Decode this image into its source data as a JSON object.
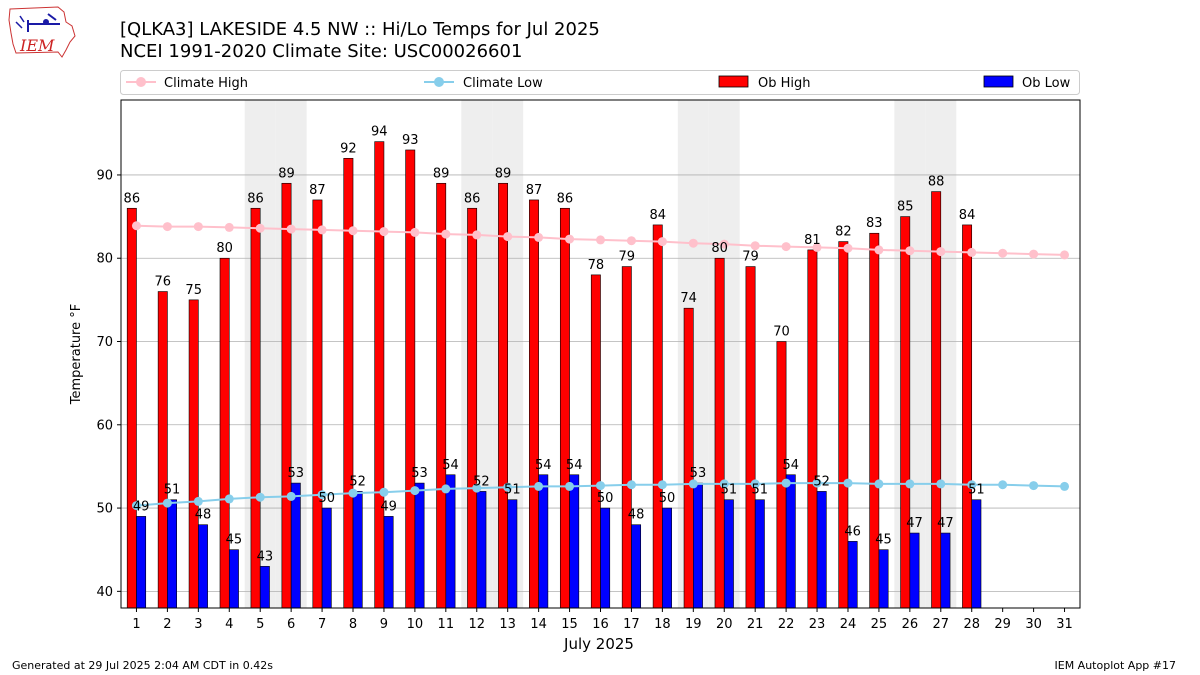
{
  "footer": {
    "generated": "Generated at 29 Jul 2025 2:04 AM CDT in 0.42s",
    "app": "IEM Autoplot App #17"
  },
  "logo": {
    "text": "IEM",
    "icon": "iem-iowa-state-logo"
  },
  "colors": {
    "ob_high": "#ff0000",
    "ob_low": "#0000ff",
    "climate_high": "#ffc0cb",
    "climate_low": "#87ceeb",
    "weekend_band": "#eeeeee",
    "grid": "#b0b0b0"
  },
  "chart_data": {
    "type": "bar",
    "title": "[QLKA3] LAKESIDE 4.5 NW :: Hi/Lo Temps for Jul 2025",
    "subtitle": "NCEI 1991-2020 Climate Site: USC00026601",
    "xlabel": "July 2025",
    "ylabel": "Temperature °F",
    "ylim": [
      38,
      99
    ],
    "yticks": [
      40,
      50,
      60,
      70,
      80,
      90
    ],
    "grid": "horizontal",
    "legend_position": "top",
    "categories": [
      "1",
      "2",
      "3",
      "4",
      "5",
      "6",
      "7",
      "8",
      "9",
      "10",
      "11",
      "12",
      "13",
      "14",
      "15",
      "16",
      "17",
      "18",
      "19",
      "20",
      "21",
      "22",
      "23",
      "24",
      "25",
      "26",
      "27",
      "28",
      "29",
      "30",
      "31"
    ],
    "shaded_days": [
      5,
      6,
      12,
      13,
      19,
      20,
      26,
      27
    ],
    "series": [
      {
        "name": "Ob High",
        "kind": "bar",
        "values": [
          86,
          76,
          75,
          80,
          86,
          89,
          87,
          92,
          94,
          93,
          89,
          86,
          89,
          87,
          86,
          78,
          79,
          84,
          74,
          80,
          79,
          70,
          81,
          82,
          83,
          85,
          88,
          84,
          null,
          null,
          null
        ]
      },
      {
        "name": "Ob Low",
        "kind": "bar",
        "values": [
          49,
          51,
          48,
          45,
          43,
          53,
          50,
          52,
          49,
          53,
          54,
          52,
          51,
          54,
          54,
          50,
          48,
          50,
          53,
          51,
          51,
          54,
          52,
          46,
          45,
          47,
          47,
          51,
          null,
          null,
          null
        ]
      },
      {
        "name": "Climate High",
        "kind": "line",
        "values": [
          83.9,
          83.8,
          83.8,
          83.7,
          83.6,
          83.5,
          83.4,
          83.3,
          83.2,
          83.1,
          82.9,
          82.8,
          82.6,
          82.5,
          82.3,
          82.2,
          82.1,
          82.0,
          81.8,
          81.7,
          81.5,
          81.4,
          81.3,
          81.2,
          81.0,
          80.9,
          80.8,
          80.7,
          80.6,
          80.5,
          80.4
        ]
      },
      {
        "name": "Climate Low",
        "kind": "line",
        "values": [
          50.3,
          50.6,
          50.8,
          51.1,
          51.3,
          51.4,
          51.6,
          51.8,
          51.9,
          52.1,
          52.3,
          52.4,
          52.5,
          52.6,
          52.6,
          52.7,
          52.8,
          52.8,
          52.9,
          52.9,
          52.9,
          53.0,
          53.0,
          53.0,
          52.9,
          52.9,
          52.9,
          52.8,
          52.8,
          52.7,
          52.6
        ]
      }
    ]
  }
}
